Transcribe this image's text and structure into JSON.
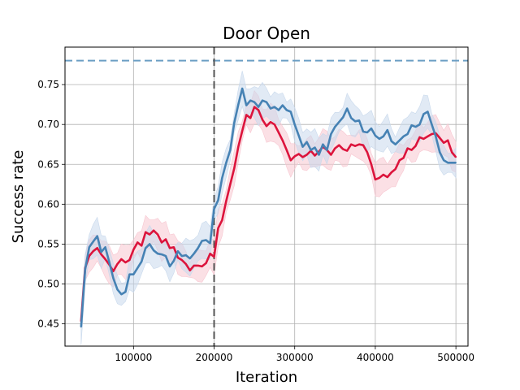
{
  "chart_data": {
    "type": "line",
    "title": "Door Open",
    "xlabel": "Iteration",
    "ylabel": "Success rate",
    "xlim": [
      15000,
      515000
    ],
    "ylim": [
      0.422,
      0.797
    ],
    "grid": true,
    "x_ticks": [
      100000,
      200000,
      300000,
      400000,
      500000
    ],
    "y_ticks": [
      0.45,
      0.5,
      0.55,
      0.6,
      0.65,
      0.7,
      0.75
    ],
    "reference_lines": [
      {
        "orientation": "horizontal",
        "value": 0.78,
        "style": "dashed",
        "color": "#6b9ec4"
      },
      {
        "orientation": "vertical",
        "value": 200000,
        "style": "dashed",
        "color": "#555555"
      }
    ],
    "series": [
      {
        "color": "#dc143c",
        "band_color": "#f7c6d0",
        "x": [
          35000,
          40000,
          45000,
          50000,
          55000,
          60000,
          65000,
          70000,
          75000,
          80000,
          85000,
          90000,
          95000,
          100000,
          105000,
          110000,
          115000,
          120000,
          125000,
          130000,
          135000,
          140000,
          145000,
          150000,
          155000,
          160000,
          165000,
          170000,
          175000,
          180000,
          185000,
          190000,
          195000,
          200000,
          205000,
          210000,
          215000,
          220000,
          225000,
          230000,
          235000,
          240000,
          245000,
          250000,
          255000,
          260000,
          265000,
          270000,
          275000,
          280000,
          285000,
          290000,
          295000,
          300000,
          305000,
          310000,
          315000,
          320000,
          325000,
          330000,
          335000,
          340000,
          345000,
          350000,
          355000,
          360000,
          365000,
          370000,
          375000,
          380000,
          385000,
          390000,
          395000,
          400000,
          405000,
          410000,
          415000,
          420000,
          425000,
          430000,
          435000,
          440000,
          445000,
          450000,
          455000,
          460000,
          465000,
          470000,
          475000,
          480000,
          485000,
          490000,
          495000,
          500000
        ],
        "values": [
          0.453,
          0.52,
          0.535,
          0.541,
          0.545,
          0.537,
          0.531,
          0.524,
          0.516,
          0.525,
          0.531,
          0.527,
          0.53,
          0.543,
          0.552,
          0.548,
          0.565,
          0.562,
          0.567,
          0.562,
          0.552,
          0.556,
          0.545,
          0.546,
          0.533,
          0.53,
          0.525,
          0.517,
          0.523,
          0.523,
          0.522,
          0.526,
          0.538,
          0.534,
          0.57,
          0.58,
          0.604,
          0.625,
          0.645,
          0.672,
          0.692,
          0.712,
          0.708,
          0.722,
          0.718,
          0.706,
          0.698,
          0.703,
          0.7,
          0.69,
          0.68,
          0.668,
          0.655,
          0.66,
          0.663,
          0.659,
          0.662,
          0.667,
          0.661,
          0.666,
          0.672,
          0.668,
          0.662,
          0.67,
          0.674,
          0.669,
          0.667,
          0.675,
          0.673,
          0.675,
          0.674,
          0.665,
          0.65,
          0.631,
          0.633,
          0.637,
          0.634,
          0.64,
          0.644,
          0.655,
          0.658,
          0.67,
          0.668,
          0.673,
          0.684,
          0.682,
          0.685,
          0.688,
          0.689,
          0.683,
          0.677,
          0.68,
          0.665,
          0.659
        ]
      },
      {
        "color": "#4682b4",
        "band_color": "#c9d9ec",
        "x": [
          35000,
          40000,
          45000,
          50000,
          55000,
          60000,
          65000,
          70000,
          75000,
          80000,
          85000,
          90000,
          95000,
          100000,
          105000,
          110000,
          115000,
          120000,
          125000,
          130000,
          135000,
          140000,
          145000,
          150000,
          155000,
          160000,
          165000,
          170000,
          175000,
          180000,
          185000,
          190000,
          195000,
          200000,
          205000,
          210000,
          215000,
          220000,
          225000,
          230000,
          235000,
          240000,
          245000,
          250000,
          255000,
          260000,
          265000,
          270000,
          275000,
          280000,
          285000,
          290000,
          295000,
          300000,
          305000,
          310000,
          315000,
          320000,
          325000,
          330000,
          335000,
          340000,
          345000,
          350000,
          355000,
          360000,
          365000,
          370000,
          375000,
          380000,
          385000,
          390000,
          395000,
          400000,
          405000,
          410000,
          415000,
          420000,
          425000,
          430000,
          435000,
          440000,
          445000,
          450000,
          455000,
          460000,
          465000,
          470000,
          475000,
          480000,
          485000,
          490000,
          495000,
          500000
        ],
        "values": [
          0.446,
          0.518,
          0.546,
          0.553,
          0.56,
          0.54,
          0.546,
          0.527,
          0.507,
          0.493,
          0.487,
          0.49,
          0.512,
          0.512,
          0.52,
          0.528,
          0.545,
          0.55,
          0.542,
          0.538,
          0.537,
          0.535,
          0.522,
          0.529,
          0.541,
          0.535,
          0.536,
          0.532,
          0.538,
          0.545,
          0.554,
          0.555,
          0.551,
          0.594,
          0.605,
          0.633,
          0.652,
          0.668,
          0.702,
          0.725,
          0.745,
          0.724,
          0.73,
          0.728,
          0.722,
          0.73,
          0.728,
          0.72,
          0.722,
          0.718,
          0.724,
          0.718,
          0.716,
          0.7,
          0.686,
          0.672,
          0.678,
          0.668,
          0.671,
          0.662,
          0.675,
          0.668,
          0.688,
          0.697,
          0.703,
          0.709,
          0.72,
          0.708,
          0.704,
          0.705,
          0.691,
          0.69,
          0.695,
          0.686,
          0.682,
          0.685,
          0.693,
          0.679,
          0.675,
          0.68,
          0.685,
          0.688,
          0.699,
          0.697,
          0.7,
          0.713,
          0.716,
          0.7,
          0.685,
          0.665,
          0.655,
          0.652,
          0.652,
          0.652
        ]
      }
    ]
  }
}
